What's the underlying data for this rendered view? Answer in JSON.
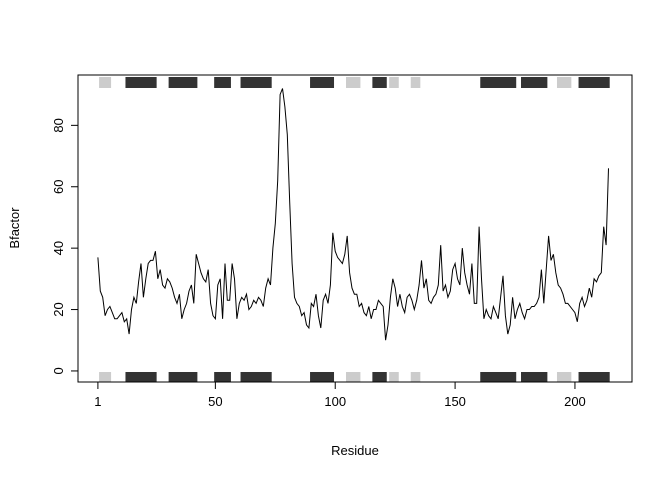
{
  "chart_data": {
    "type": "line",
    "title": "",
    "xlabel": "Residue",
    "ylabel": "Bfactor",
    "xlim": [
      -7.3,
      223.8
    ],
    "ylim": [
      -3.6,
      96.4
    ],
    "x_ticks": [
      1,
      50,
      100,
      150,
      200
    ],
    "y_ticks": [
      0,
      20,
      40,
      60,
      80
    ],
    "grid": false,
    "line_color": "#000000",
    "helix_color": "#333333",
    "strand_color": "#cccccc",
    "secondary_structure": [
      {
        "type": "strand",
        "start": 2,
        "end": 6
      },
      {
        "type": "helix",
        "start": 13,
        "end": 25
      },
      {
        "type": "helix",
        "start": 31,
        "end": 42
      },
      {
        "type": "helix",
        "start": 50,
        "end": 56
      },
      {
        "type": "helix",
        "start": 61,
        "end": 73
      },
      {
        "type": "helix",
        "start": 90,
        "end": 99
      },
      {
        "type": "strand",
        "start": 105,
        "end": 110
      },
      {
        "type": "helix",
        "start": 116,
        "end": 121
      },
      {
        "type": "strand",
        "start": 123,
        "end": 126
      },
      {
        "type": "strand",
        "start": 132,
        "end": 135
      },
      {
        "type": "helix",
        "start": 161,
        "end": 175
      },
      {
        "type": "helix",
        "start": 178,
        "end": 188
      },
      {
        "type": "strand",
        "start": 193,
        "end": 198
      },
      {
        "type": "helix",
        "start": 202,
        "end": 214
      }
    ],
    "series": [
      {
        "values": [
          37,
          26,
          24,
          18,
          20,
          21,
          19,
          17,
          17,
          18,
          19,
          16,
          17,
          12,
          20,
          24,
          22,
          29,
          35,
          24,
          30,
          35,
          36,
          36,
          39,
          30,
          33,
          28,
          27,
          30,
          29,
          27,
          24,
          22,
          25,
          17,
          20,
          22,
          26,
          28,
          22,
          38,
          35,
          32,
          30,
          29,
          33,
          22,
          18,
          17,
          28,
          30,
          17,
          35,
          23,
          23,
          35,
          30,
          17,
          22,
          24,
          23,
          25,
          20,
          21,
          23,
          22,
          24,
          23,
          21,
          27,
          30,
          28,
          40,
          48,
          62,
          90,
          92,
          86,
          77,
          55,
          35,
          24,
          22,
          21,
          18,
          19,
          15,
          14,
          22,
          21,
          25,
          18,
          14,
          23,
          25,
          22,
          28,
          45,
          39,
          37,
          36,
          35,
          38,
          44,
          32,
          27,
          25,
          25,
          21,
          22,
          19,
          18,
          21,
          17,
          20,
          20,
          23,
          22,
          21,
          10,
          15,
          24,
          30,
          27,
          21,
          25,
          21,
          19,
          24,
          25,
          23,
          20,
          23,
          28,
          36,
          27,
          30,
          23,
          22,
          24,
          25,
          28,
          41,
          26,
          28,
          24,
          26,
          33,
          35,
          30,
          28,
          40,
          32,
          28,
          25,
          35,
          22,
          22,
          47,
          30,
          17,
          20,
          18,
          17,
          21,
          19,
          17,
          24,
          31,
          18,
          12,
          15,
          24,
          17,
          20,
          22,
          19,
          17,
          20,
          20,
          21,
          21,
          22,
          24,
          33,
          22,
          33,
          44,
          36,
          38,
          32,
          28,
          27,
          25,
          22,
          22,
          21,
          20,
          19,
          16,
          22,
          24,
          21,
          23,
          27,
          24,
          30,
          29,
          31,
          32,
          47,
          41,
          66
        ]
      }
    ]
  }
}
